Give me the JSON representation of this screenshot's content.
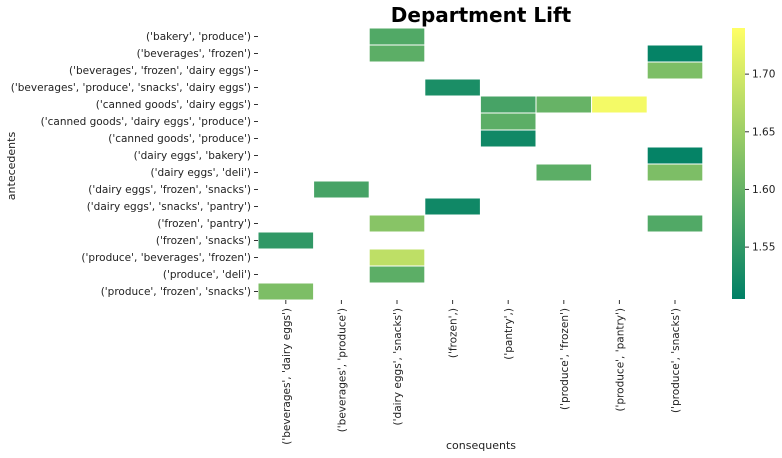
{
  "chart_data": {
    "type": "heatmap",
    "title": "Department Lift",
    "xlabel": "consequents",
    "ylabel": "antecedents",
    "rows": [
      "('bakery', 'produce')",
      "('beverages', 'frozen')",
      "('beverages', 'frozen', 'dairy eggs')",
      "('beverages', 'produce', 'snacks', 'dairy eggs')",
      "('canned goods', 'dairy eggs')",
      "('canned goods', 'dairy eggs', 'produce')",
      "('canned goods', 'produce')",
      "('dairy eggs', 'bakery')",
      "('dairy eggs', 'deli')",
      "('dairy eggs', 'frozen', 'snacks')",
      "('dairy eggs', 'snacks', 'pantry')",
      "('frozen', 'pantry')",
      "('frozen', 'snacks')",
      "('produce', 'beverages', 'frozen')",
      "('produce', 'deli')",
      "('produce', 'frozen', 'snacks')"
    ],
    "columns": [
      "('beverages', 'dairy eggs')",
      "('beverages', 'produce')",
      "('dairy eggs', 'snacks')",
      "('frozen',)",
      "('pantry',)",
      "('produce', 'frozen')",
      "('produce', 'pantry')",
      "('produce', 'snacks')"
    ],
    "cells": [
      {
        "row": 0,
        "col": 2,
        "value": 1.58
      },
      {
        "row": 1,
        "col": 2,
        "value": 1.59
      },
      {
        "row": 1,
        "col": 7,
        "value": 1.51
      },
      {
        "row": 2,
        "col": 7,
        "value": 1.62
      },
      {
        "row": 3,
        "col": 3,
        "value": 1.53
      },
      {
        "row": 4,
        "col": 4,
        "value": 1.57
      },
      {
        "row": 4,
        "col": 5,
        "value": 1.6
      },
      {
        "row": 4,
        "col": 6,
        "value": 1.73
      },
      {
        "row": 5,
        "col": 4,
        "value": 1.59
      },
      {
        "row": 6,
        "col": 4,
        "value": 1.52
      },
      {
        "row": 7,
        "col": 7,
        "value": 1.51
      },
      {
        "row": 8,
        "col": 5,
        "value": 1.59
      },
      {
        "row": 8,
        "col": 7,
        "value": 1.62
      },
      {
        "row": 9,
        "col": 1,
        "value": 1.57
      },
      {
        "row": 10,
        "col": 3,
        "value": 1.52
      },
      {
        "row": 11,
        "col": 2,
        "value": 1.63
      },
      {
        "row": 11,
        "col": 7,
        "value": 1.58
      },
      {
        "row": 12,
        "col": 0,
        "value": 1.55
      },
      {
        "row": 13,
        "col": 2,
        "value": 1.68
      },
      {
        "row": 14,
        "col": 2,
        "value": 1.59
      },
      {
        "row": 15,
        "col": 0,
        "value": 1.62
      }
    ],
    "colorbar": {
      "min": 1.505,
      "max": 1.74,
      "ticks": [
        1.55,
        1.6,
        1.65,
        1.7
      ],
      "tick_labels": [
        "1.55",
        "1.60",
        "1.65",
        "1.70"
      ],
      "colormap": "summer"
    },
    "grid": false
  }
}
